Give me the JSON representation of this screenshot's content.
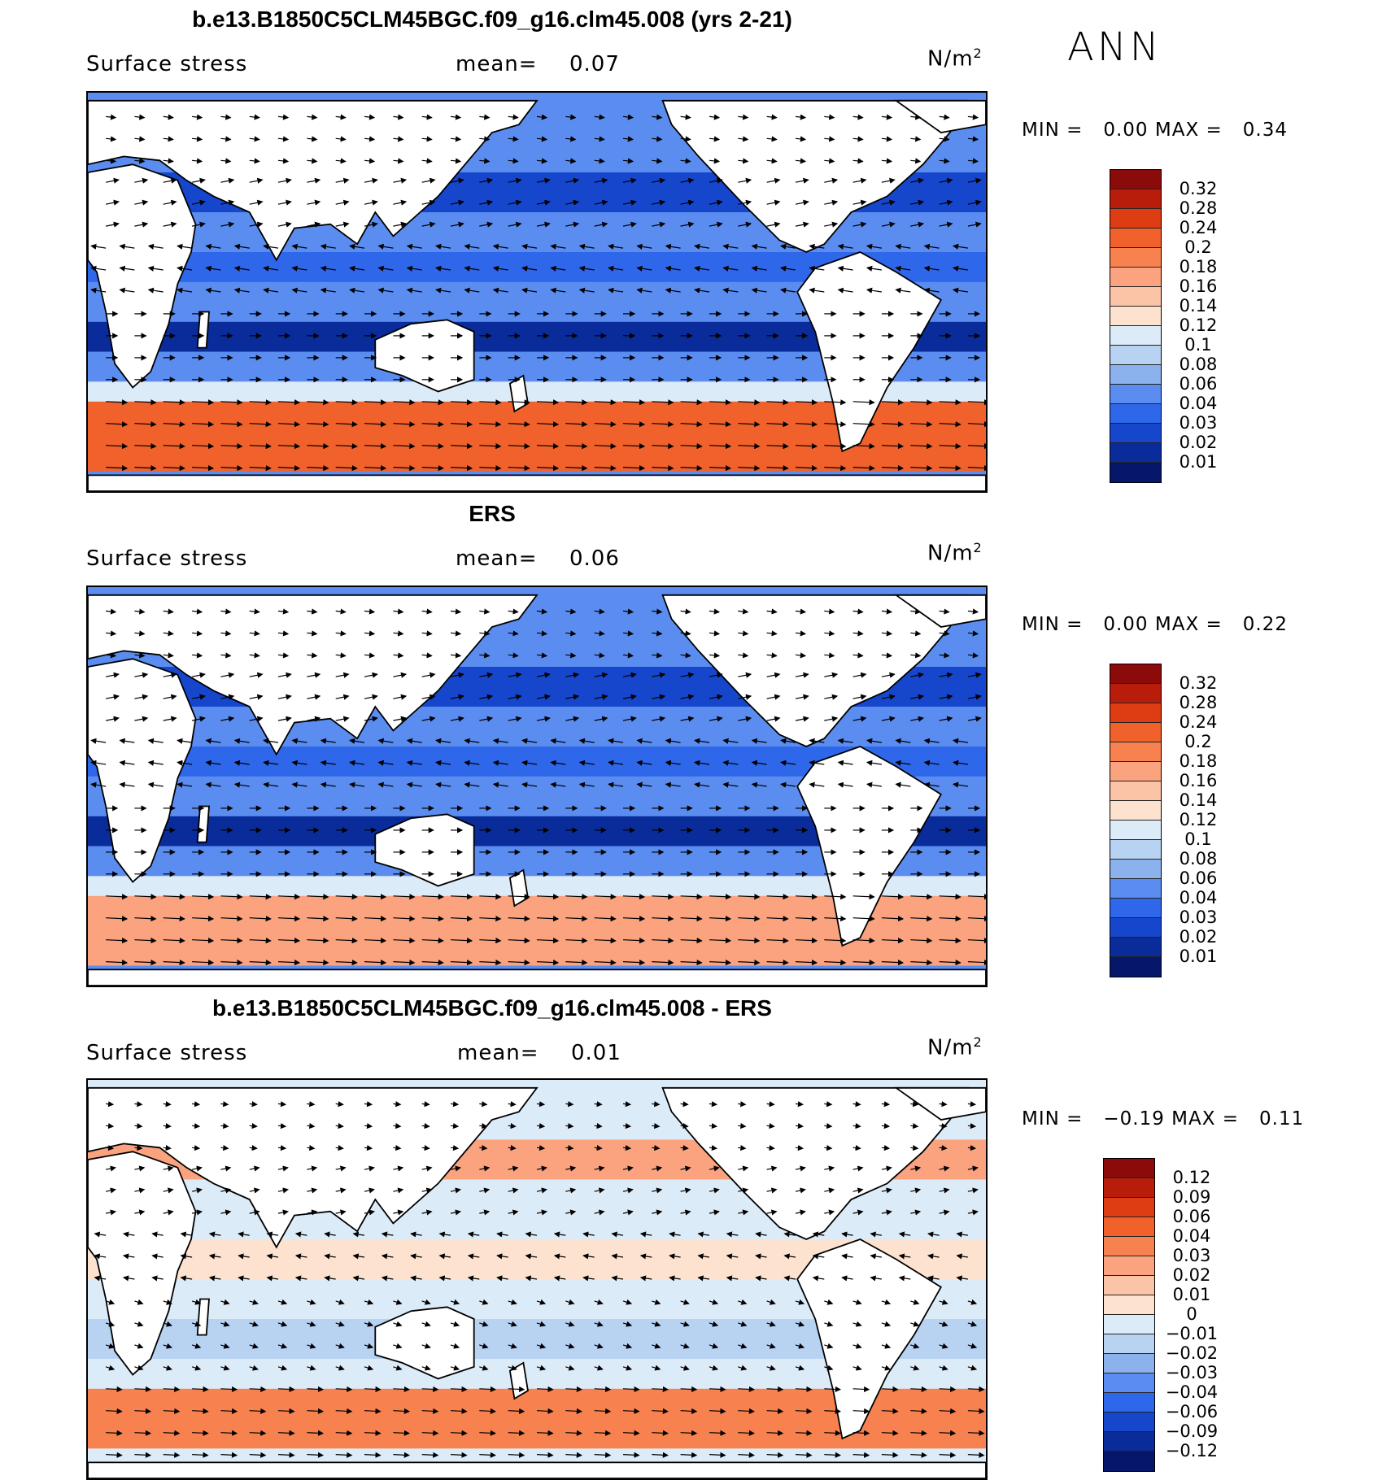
{
  "season_label": "ANN",
  "panels": [
    {
      "title": "b.e13.B1850C5CLM45BGC.f09_g16.clm45.008 (yrs 2-21)",
      "variable": "Surface stress",
      "mean_label": "mean=",
      "mean_value": "0.07",
      "units": "N/m",
      "units_sup": "2",
      "min_label": "MIN =",
      "min_value": "0.00",
      "max_label": "MAX =",
      "max_value": "0.34",
      "colorbar": [
        "0.32",
        "0.28",
        "0.24",
        "0.2",
        "0.18",
        "0.16",
        "0.14",
        "0.12",
        "0.1",
        "0.08",
        "0.06",
        "0.04",
        "0.03",
        "0.02",
        "0.01"
      ],
      "colors": [
        "#8b0a0a",
        "#b81d0b",
        "#de3c12",
        "#f0612c",
        "#f7824f",
        "#fba27e",
        "#fcc4a6",
        "#fde3cf",
        "#dcebf8",
        "#b8d2f2",
        "#8cb2ee",
        "#5b8df0",
        "#2f67ea",
        "#1646cc",
        "#0a2c9a",
        "#06166b"
      ]
    },
    {
      "title": "ERS",
      "variable": "Surface stress",
      "mean_label": "mean=",
      "mean_value": "0.06",
      "units": "N/m",
      "units_sup": "2",
      "min_label": "MIN =",
      "min_value": "0.00",
      "max_label": "MAX =",
      "max_value": "0.22",
      "colorbar": [
        "0.32",
        "0.28",
        "0.24",
        "0.2",
        "0.18",
        "0.16",
        "0.14",
        "0.12",
        "0.1",
        "0.08",
        "0.06",
        "0.04",
        "0.03",
        "0.02",
        "0.01"
      ],
      "colors": [
        "#8b0a0a",
        "#b81d0b",
        "#de3c12",
        "#f0612c",
        "#f7824f",
        "#fba27e",
        "#fcc4a6",
        "#fde3cf",
        "#dcebf8",
        "#b8d2f2",
        "#8cb2ee",
        "#5b8df0",
        "#2f67ea",
        "#1646cc",
        "#0a2c9a",
        "#06166b"
      ]
    },
    {
      "title": "b.e13.B1850C5CLM45BGC.f09_g16.clm45.008 - ERS",
      "variable": "Surface stress",
      "mean_label": "mean=",
      "mean_value": "0.01",
      "units": "N/m",
      "units_sup": "2",
      "min_label": "MIN =",
      "min_value": "−0.19",
      "max_label": "MAX =",
      "max_value": "0.11",
      "colorbar": [
        "0.12",
        "0.09",
        "0.06",
        "0.04",
        "0.03",
        "0.02",
        "0.01",
        "0",
        "−0.01",
        "−0.02",
        "−0.03",
        "−0.04",
        "−0.06",
        "−0.09",
        "−0.12"
      ],
      "colors": [
        "#8b0a0a",
        "#b81d0b",
        "#de3c12",
        "#f0612c",
        "#f7824f",
        "#fba27e",
        "#fcc4a6",
        "#fde3cf",
        "#dcebf8",
        "#b8d2f2",
        "#8cb2ee",
        "#5b8df0",
        "#2f67ea",
        "#1646cc",
        "#0a2c9a",
        "#06166b"
      ]
    }
  ]
}
